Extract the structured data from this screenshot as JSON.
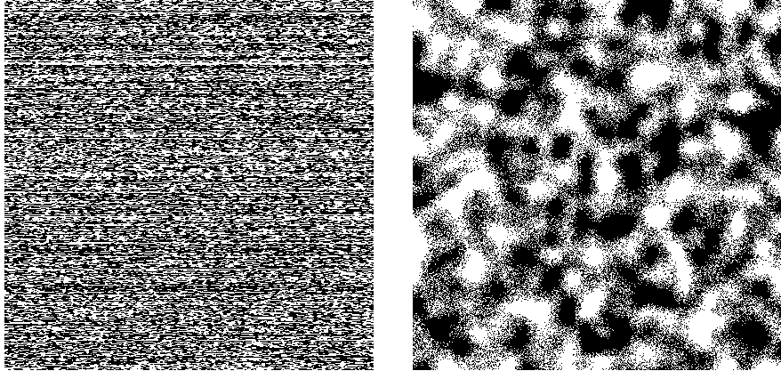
{
  "panels": [
    {
      "id": "left",
      "pattern": "horizontal-streak-binary-noise",
      "colors": {
        "foreground": "#ffffff",
        "background": "#000000"
      },
      "white_fraction": 0.42
    },
    {
      "id": "right",
      "pattern": "blob-cluster-binary-noise",
      "colors": {
        "foreground": "#ffffff",
        "background": "#000000"
      },
      "white_fraction": 0.5
    }
  ]
}
